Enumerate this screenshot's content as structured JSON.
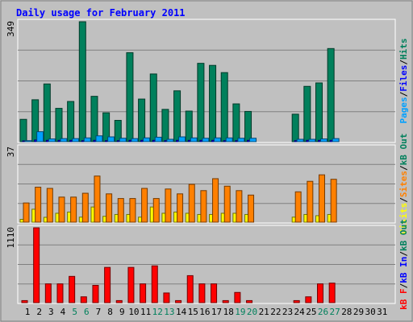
{
  "title": "Daily usage for February 2011",
  "chart_data": [
    {
      "type": "bar",
      "panel": "hits-files-pages",
      "categories": [
        "1",
        "2",
        "3",
        "4",
        "5",
        "6",
        "7",
        "8",
        "9",
        "10",
        "11",
        "12",
        "13",
        "14",
        "15",
        "16",
        "17",
        "18",
        "19",
        "20",
        "21",
        "22",
        "23",
        "24",
        "25",
        "26",
        "27",
        "28",
        "29",
        "30",
        "31"
      ],
      "weekend_days": [
        "5",
        "6",
        "12",
        "13",
        "19",
        "20",
        "26",
        "27"
      ],
      "ylim": [
        0,
        349
      ],
      "scale_label": "349",
      "axis_label": [
        {
          "text": "Pages",
          "color": "#00a0ff"
        },
        {
          "text": "/",
          "color": "#000000"
        },
        {
          "text": "Files",
          "color": "#0000ff"
        },
        {
          "text": "/",
          "color": "#000000"
        },
        {
          "text": "Hits",
          "color": "#00805c"
        }
      ],
      "series": [
        {
          "name": "Hits",
          "color": "#00805c",
          "values": [
            65,
            122,
            168,
            97,
            117,
            349,
            132,
            84,
            62,
            259,
            124,
            197,
            94,
            148,
            89,
            228,
            222,
            201,
            110,
            88,
            0,
            0,
            0,
            80,
            161,
            171,
            271,
            0,
            0,
            0,
            0
          ]
        },
        {
          "name": "Files",
          "color": "#0000ff",
          "values": [
            2,
            5,
            4,
            4,
            4,
            3,
            4,
            3,
            3,
            4,
            4,
            4,
            3,
            4,
            4,
            4,
            4,
            3,
            3,
            4,
            0,
            0,
            0,
            3,
            4,
            4,
            4,
            0,
            0,
            0,
            0
          ]
        },
        {
          "name": "Pages",
          "color": "#00a0ff",
          "values": [
            3,
            29,
            8,
            9,
            9,
            11,
            17,
            14,
            10,
            9,
            11,
            13,
            7,
            14,
            11,
            10,
            11,
            11,
            10,
            10,
            0,
            0,
            0,
            7,
            7,
            8,
            9,
            0,
            0,
            0,
            0
          ]
        }
      ]
    },
    {
      "type": "bar",
      "panel": "visits-sites-kbout",
      "ylim": [
        0,
        37
      ],
      "scale_label": "37",
      "axis_label": [
        {
          "text": "Visits",
          "color": "#ffff00"
        },
        {
          "text": "/",
          "color": "#000000"
        },
        {
          "text": "Sites",
          "color": "#ff8000"
        },
        {
          "text": "/",
          "color": "#000000"
        },
        {
          "text": "kB Out",
          "color": "#00805c"
        }
      ],
      "series": [
        {
          "name": "Visits",
          "color": "#ffff00",
          "values": [
            1.4,
            6.4,
            2.4,
            4.4,
            5.0,
            2.5,
            7.5,
            2.9,
            3.8,
            3.8,
            2.5,
            7.5,
            4.4,
            5.0,
            4.4,
            3.8,
            3.8,
            4.4,
            4.4,
            3.8,
            0,
            0,
            0,
            2.5,
            3.8,
            3.2,
            3.8,
            0,
            0,
            0,
            0
          ]
        },
        {
          "name": "Sites",
          "color": "#ff8000",
          "values": [
            9.5,
            17.3,
            16.7,
            12.4,
            12.4,
            14.3,
            22.8,
            14.0,
            11.7,
            11.7,
            16.7,
            11.7,
            16.4,
            14.0,
            18.7,
            15.6,
            21.5,
            17.8,
            15.6,
            13.4,
            0,
            0,
            0,
            15.0,
            20.2,
            23.4,
            21.2,
            0,
            0,
            0,
            0
          ]
        }
      ]
    },
    {
      "type": "bar",
      "panel": "kbin-kbf",
      "ylim": [
        0,
        1110
      ],
      "scale_label": "1110",
      "axis_label": [
        {
          "text": "kB F",
          "color": "#ff0000"
        },
        {
          "text": "/",
          "color": "#000000"
        },
        {
          "text": "kB In",
          "color": "#0000ff"
        },
        {
          "text": "/",
          "color": "#000000"
        },
        {
          "text": "kB Out",
          "color": "#00805c"
        }
      ],
      "series": [
        {
          "name": "kB F",
          "color": "#ff0000",
          "values": [
            31,
            1110,
            279,
            279,
            390,
            87,
            257,
            523,
            31,
            523,
            279,
            546,
            144,
            31,
            401,
            279,
            279,
            31,
            152,
            31,
            0,
            0,
            0,
            31,
            87,
            279,
            290,
            0,
            0,
            0,
            0
          ]
        }
      ]
    }
  ],
  "colors": {
    "background": "#c0c0c0",
    "frame": "#ffffff",
    "gridline": "#808080",
    "title": "#0000ff",
    "weekday_label": "#000000",
    "weekend_label": "#00805c"
  }
}
